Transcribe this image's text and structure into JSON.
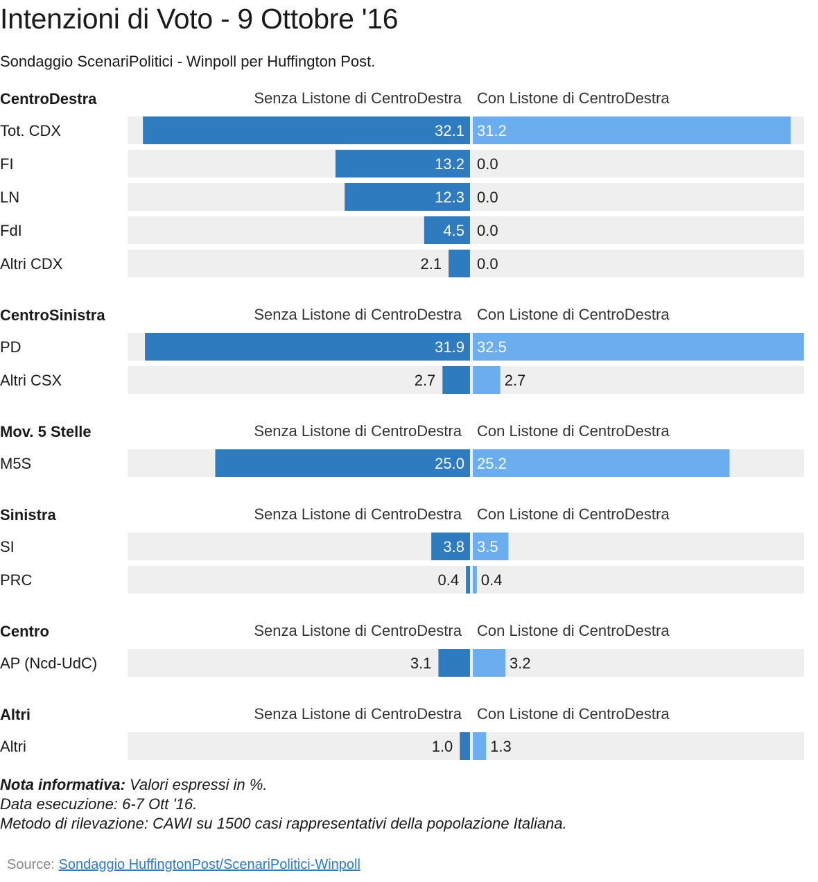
{
  "title": "Intenzioni di Voto - 9 Ottobre '16",
  "subtitle": "Sondaggio ScenariPolitici - Winpoll per Huffington Post.",
  "colors": {
    "left": "#2f7bbf",
    "right": "#6aaef0",
    "track": "#efefef"
  },
  "chart_data": {
    "type": "bar",
    "orientation": "horizontal-butterfly",
    "xlim": [
      0,
      33
    ],
    "series": [
      {
        "name": "Senza Listone di CentroDestra",
        "color": "#2f7bbf"
      },
      {
        "name": "Con Listone di CentroDestra",
        "color": "#6aaef0"
      }
    ],
    "groups": [
      {
        "label": "CentroDestra",
        "rows": [
          {
            "label": "Tot. CDX",
            "left": 32.1,
            "right": 31.2
          },
          {
            "label": "FI",
            "left": 13.2,
            "right": 0.0
          },
          {
            "label": "LN",
            "left": 12.3,
            "right": 0.0
          },
          {
            "label": "FdI",
            "left": 4.5,
            "right": 0.0
          },
          {
            "label": "Altri CDX",
            "left": 2.1,
            "right": 0.0
          }
        ]
      },
      {
        "label": "CentroSinistra",
        "rows": [
          {
            "label": "PD",
            "left": 31.9,
            "right": 32.5
          },
          {
            "label": "Altri CSX",
            "left": 2.7,
            "right": 2.7
          }
        ]
      },
      {
        "label": "Mov. 5 Stelle",
        "rows": [
          {
            "label": "M5S",
            "left": 25.0,
            "right": 25.2
          }
        ]
      },
      {
        "label": "Sinistra",
        "rows": [
          {
            "label": "SI",
            "left": 3.8,
            "right": 3.5
          },
          {
            "label": "PRC",
            "left": 0.4,
            "right": 0.4
          }
        ]
      },
      {
        "label": "Centro",
        "rows": [
          {
            "label": "AP (Ncd-UdC)",
            "left": 3.1,
            "right": 3.2
          }
        ]
      },
      {
        "label": "Altri",
        "rows": [
          {
            "label": "Altri",
            "left": 1.0,
            "right": 1.3
          }
        ]
      }
    ]
  },
  "note": {
    "bold_label": "Nota informativa:",
    "line1": "Valori espressi in %.",
    "line2": "Data esecuzione: 6-7 Ott '16.",
    "line3": "Metodo di rilevazione: CAWI su 1500 casi rappresentativi della popolazione Italiana."
  },
  "source": {
    "label": "Source:",
    "link_text": "Sondaggio HuffingtonPost/ScenariPolitici-Winpoll"
  }
}
